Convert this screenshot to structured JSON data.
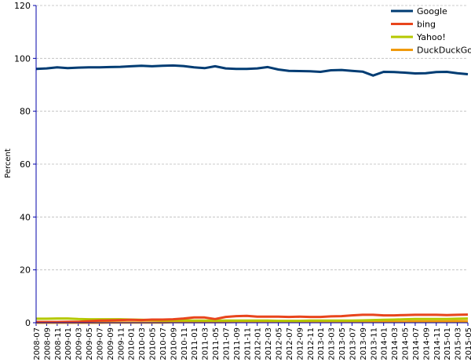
{
  "chart_data": {
    "type": "line",
    "title": "",
    "xlabel": "",
    "ylabel": "Percent",
    "ylim": [
      0,
      120
    ],
    "yticks": [
      0,
      20,
      40,
      60,
      80,
      100,
      120
    ],
    "grid": true,
    "legend_position": "top-right",
    "categories": [
      "2008-07",
      "2008-09",
      "2008-11",
      "2009-01",
      "2009-03",
      "2009-05",
      "2009-07",
      "2009-09",
      "2009-11",
      "2010-01",
      "2010-03",
      "2010-05",
      "2010-07",
      "2010-09",
      "2010-11",
      "2011-01",
      "2011-03",
      "2011-05",
      "2011-07",
      "2011-09",
      "2011-11",
      "2012-01",
      "2012-03",
      "2012-05",
      "2012-07",
      "2012-09",
      "2012-11",
      "2013-01",
      "2013-03",
      "2013-05",
      "2013-07",
      "2013-09",
      "2013-11",
      "2014-01",
      "2014-03",
      "2014-05",
      "2014-07",
      "2014-09",
      "2014-11",
      "2015-01",
      "2015-03",
      "2015-05"
    ],
    "series": [
      {
        "name": "Google",
        "color": "#003c73",
        "values": [
          96.0,
          96.2,
          96.6,
          96.3,
          96.5,
          96.6,
          96.6,
          96.7,
          96.8,
          97.0,
          97.2,
          97.0,
          97.2,
          97.3,
          97.1,
          96.6,
          96.3,
          97.0,
          96.2,
          96.0,
          96.0,
          96.2,
          96.7,
          95.8,
          95.3,
          95.2,
          95.1,
          94.9,
          95.5,
          95.6,
          95.3,
          95.0,
          93.5,
          94.9,
          94.8,
          94.6,
          94.3,
          94.4,
          94.8,
          94.9,
          94.4,
          94.0
        ]
      },
      {
        "name": "bing",
        "color": "#e8451c",
        "values": [
          0.3,
          0.3,
          0.3,
          0.4,
          0.4,
          0.6,
          0.8,
          0.9,
          1.0,
          1.1,
          1.0,
          1.2,
          1.2,
          1.3,
          1.6,
          2.0,
          2.0,
          1.4,
          2.2,
          2.5,
          2.6,
          2.3,
          2.3,
          2.3,
          2.2,
          2.3,
          2.2,
          2.2,
          2.4,
          2.5,
          2.8,
          3.0,
          3.0,
          2.8,
          2.8,
          2.9,
          3.0,
          3.0,
          3.0,
          2.9,
          3.0,
          3.1
        ]
      },
      {
        "name": "Yahoo!",
        "color": "#b5c800",
        "values": [
          1.5,
          1.5,
          1.6,
          1.6,
          1.4,
          1.3,
          1.3,
          1.3,
          1.3,
          1.2,
          1.1,
          1.0,
          0.9,
          0.9,
          0.9,
          0.8,
          0.8,
          0.8,
          0.8,
          0.8,
          0.8,
          0.8,
          0.8,
          0.7,
          0.7,
          0.7,
          0.8,
          0.8,
          0.8,
          0.8,
          0.8,
          0.9,
          1.0,
          1.1,
          1.2,
          1.3,
          1.4,
          1.4,
          1.4,
          1.4,
          1.5,
          1.6
        ]
      },
      {
        "name": "DuckDuckGo",
        "color": "#f09a0d",
        "values": [
          0.0,
          0.0,
          0.0,
          0.0,
          0.0,
          0.0,
          0.0,
          0.1,
          0.1,
          0.1,
          0.1,
          0.1,
          0.1,
          0.2,
          0.2,
          0.2,
          0.2,
          0.2,
          0.2,
          0.3,
          0.3,
          0.3,
          0.3,
          0.3,
          0.3,
          0.3,
          0.3,
          0.3,
          0.3,
          0.3,
          0.3,
          0.4,
          0.4,
          0.4,
          0.4,
          0.4,
          0.5,
          0.5,
          0.5,
          0.5,
          0.6,
          0.6
        ]
      }
    ]
  }
}
